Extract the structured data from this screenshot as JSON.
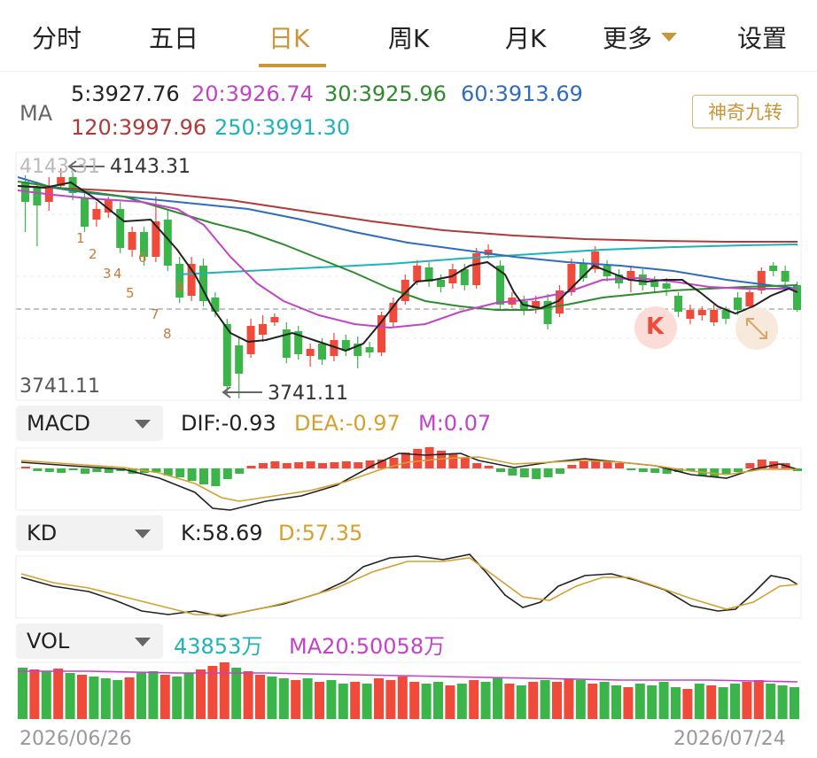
{
  "tabs": [
    {
      "label": "分时"
    },
    {
      "label": "五日"
    },
    {
      "label": "日K"
    },
    {
      "label": "周K"
    },
    {
      "label": "月K"
    },
    {
      "label": "更多"
    },
    {
      "label": "设置"
    }
  ],
  "ma": {
    "label": "MA",
    "ma5": "5:3927.76",
    "ma20": "20:3926.74",
    "ma30": "30:3925.96",
    "ma60": "60:3913.69",
    "ma120": "120:3997.96",
    "ma250": "250:3991.30",
    "magic_button": "神奇九转"
  },
  "colors": {
    "accent": "#c9963a",
    "up": "#f04a3a",
    "down": "#3bb44a",
    "ma5": "#222222",
    "ma20": "#c243c8",
    "ma30": "#2e8b2e",
    "ma60": "#2f6cc0",
    "ma120": "#b03a3a",
    "ma250": "#1fb2b8"
  },
  "price": {
    "top_axis": "4143.31",
    "high_marker": "4143.31",
    "bottom_axis": "3741.11",
    "low_marker": "3741.11",
    "nine_turn": [
      "1",
      "2",
      "3",
      "4",
      "5",
      "6",
      "7",
      "8",
      "9"
    ],
    "k_badge": "K",
    "expand_icon": "expand-icon"
  },
  "macd": {
    "selector": "MACD",
    "dif": "DIF:-0.93",
    "dea": "DEA:-0.97",
    "m": "M:0.07"
  },
  "kd": {
    "selector": "KD",
    "k": "K:58.69",
    "d": "D:57.35"
  },
  "vol": {
    "selector": "VOL",
    "value": "43853万",
    "ma20": "MA20:50058万"
  },
  "dates": {
    "start": "2026/06/26",
    "end": "2026/07/24"
  }
}
